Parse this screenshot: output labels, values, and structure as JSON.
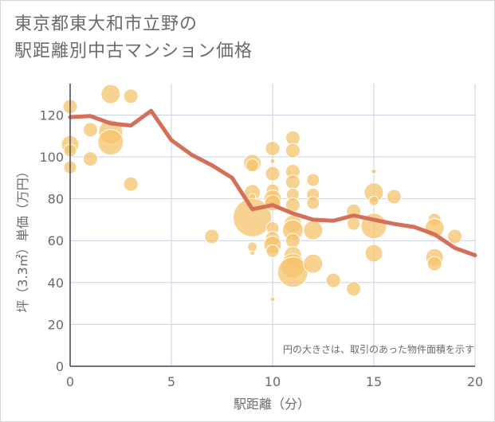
{
  "title_line1": "東京都東大和市立野の",
  "title_line2": "駅距離別中古マンション価格",
  "note": "円の大きさは、取引のあった物件面積を示す",
  "colors": {
    "bubble": "#f5c36b",
    "line": "#d4705a",
    "grid": "#c8d2e0",
    "axis": "#3d4a5c"
  },
  "chart_data": {
    "type": "scatter",
    "xlabel": "駅距離（分）",
    "ylabel": "坪（3.3㎡）単価（万円）",
    "xlim": [
      0,
      20
    ],
    "ylim": [
      0,
      135
    ],
    "xticks": [
      0,
      5,
      10,
      15,
      20
    ],
    "yticks": [
      0,
      20,
      40,
      60,
      80,
      100,
      120
    ],
    "bubbles": [
      {
        "x": 0,
        "y": 124,
        "r": 9
      },
      {
        "x": 0,
        "y": 106,
        "r": 11
      },
      {
        "x": 0,
        "y": 103,
        "r": 8
      },
      {
        "x": 0,
        "y": 95,
        "r": 8
      },
      {
        "x": 1,
        "y": 113,
        "r": 9
      },
      {
        "x": 1,
        "y": 99,
        "r": 9
      },
      {
        "x": 2,
        "y": 130,
        "r": 12
      },
      {
        "x": 2,
        "y": 112,
        "r": 15
      },
      {
        "x": 2,
        "y": 107,
        "r": 16
      },
      {
        "x": 3,
        "y": 129,
        "r": 9
      },
      {
        "x": 3,
        "y": 87,
        "r": 9
      },
      {
        "x": 7,
        "y": 62,
        "r": 9
      },
      {
        "x": 9,
        "y": 97,
        "r": 11
      },
      {
        "x": 9,
        "y": 96,
        "r": 8
      },
      {
        "x": 9,
        "y": 83,
        "r": 10
      },
      {
        "x": 9,
        "y": 81,
        "r": 4
      },
      {
        "x": 9,
        "y": 71,
        "r": 24
      },
      {
        "x": 9,
        "y": 57,
        "r": 6
      },
      {
        "x": 9,
        "y": 54,
        "r": 3
      },
      {
        "x": 10,
        "y": 104,
        "r": 9
      },
      {
        "x": 10,
        "y": 98,
        "r": 3
      },
      {
        "x": 10,
        "y": 92,
        "r": 9
      },
      {
        "x": 10,
        "y": 84,
        "r": 8
      },
      {
        "x": 10,
        "y": 80,
        "r": 11
      },
      {
        "x": 10,
        "y": 78,
        "r": 10
      },
      {
        "x": 10,
        "y": 66,
        "r": 8
      },
      {
        "x": 10,
        "y": 61,
        "r": 9
      },
      {
        "x": 10,
        "y": 58,
        "r": 11
      },
      {
        "x": 10,
        "y": 55,
        "r": 8
      },
      {
        "x": 10,
        "y": 32,
        "r": 3
      },
      {
        "x": 11,
        "y": 109,
        "r": 9
      },
      {
        "x": 11,
        "y": 103,
        "r": 9
      },
      {
        "x": 11,
        "y": 93,
        "r": 9
      },
      {
        "x": 11,
        "y": 88,
        "r": 9
      },
      {
        "x": 11,
        "y": 82,
        "r": 8
      },
      {
        "x": 11,
        "y": 77,
        "r": 9
      },
      {
        "x": 11,
        "y": 68,
        "r": 11
      },
      {
        "x": 11,
        "y": 65,
        "r": 13
      },
      {
        "x": 11,
        "y": 60,
        "r": 9
      },
      {
        "x": 11,
        "y": 53,
        "r": 11
      },
      {
        "x": 11,
        "y": 48,
        "r": 15
      },
      {
        "x": 11,
        "y": 45,
        "r": 19
      },
      {
        "x": 12,
        "y": 89,
        "r": 8
      },
      {
        "x": 12,
        "y": 82,
        "r": 8
      },
      {
        "x": 12,
        "y": 78,
        "r": 8
      },
      {
        "x": 12,
        "y": 65,
        "r": 12
      },
      {
        "x": 12,
        "y": 49,
        "r": 12
      },
      {
        "x": 13,
        "y": 41,
        "r": 9
      },
      {
        "x": 14,
        "y": 74,
        "r": 9
      },
      {
        "x": 14,
        "y": 68,
        "r": 8
      },
      {
        "x": 14,
        "y": 37,
        "r": 9
      },
      {
        "x": 15,
        "y": 93,
        "r": 3
      },
      {
        "x": 15,
        "y": 83,
        "r": 12
      },
      {
        "x": 15,
        "y": 79,
        "r": 6
      },
      {
        "x": 15,
        "y": 67,
        "r": 16
      },
      {
        "x": 15,
        "y": 54,
        "r": 11
      },
      {
        "x": 16,
        "y": 81,
        "r": 9
      },
      {
        "x": 18,
        "y": 70,
        "r": 8
      },
      {
        "x": 18,
        "y": 66,
        "r": 12
      },
      {
        "x": 18,
        "y": 52,
        "r": 11
      },
      {
        "x": 18,
        "y": 49,
        "r": 9
      },
      {
        "x": 19,
        "y": 62,
        "r": 9
      }
    ],
    "line": [
      {
        "x": 0,
        "y": 119
      },
      {
        "x": 1,
        "y": 119.5
      },
      {
        "x": 2,
        "y": 116
      },
      {
        "x": 3,
        "y": 115
      },
      {
        "x": 4,
        "y": 122
      },
      {
        "x": 5,
        "y": 108
      },
      {
        "x": 6,
        "y": 101
      },
      {
        "x": 7,
        "y": 96
      },
      {
        "x": 8,
        "y": 90
      },
      {
        "x": 9,
        "y": 75
      },
      {
        "x": 10,
        "y": 77
      },
      {
        "x": 11,
        "y": 73
      },
      {
        "x": 12,
        "y": 70
      },
      {
        "x": 13,
        "y": 69.5
      },
      {
        "x": 14,
        "y": 72
      },
      {
        "x": 15,
        "y": 70
      },
      {
        "x": 16,
        "y": 68
      },
      {
        "x": 17,
        "y": 66.5
      },
      {
        "x": 18,
        "y": 63
      },
      {
        "x": 19,
        "y": 56.5
      },
      {
        "x": 20,
        "y": 53
      }
    ]
  }
}
